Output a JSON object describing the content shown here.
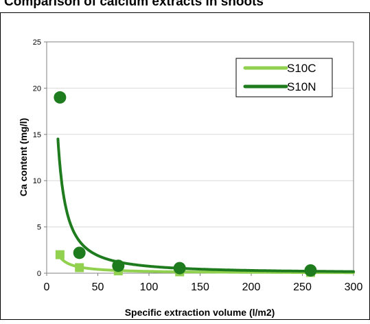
{
  "chart_data": {
    "type": "scatter",
    "title": "Comparison of calcium extracts in shoots",
    "xlabel": "Specific extraction volume (l/m2)",
    "ylabel": "Ca content (mg/l)",
    "xlim": [
      0,
      300
    ],
    "ylim": [
      0,
      25
    ],
    "xticks": [
      0,
      50,
      100,
      150,
      200,
      250,
      300
    ],
    "yticks": [
      0,
      5,
      10,
      15,
      20,
      25
    ],
    "grid": true,
    "legend_position": "top-right",
    "series": [
      {
        "name": "S10C",
        "marker": "square",
        "color": "#92d050",
        "x": [
          13,
          32,
          70,
          130,
          258
        ],
        "y": [
          2.0,
          0.6,
          0.25,
          0.15,
          0.08
        ]
      },
      {
        "name": "S10N",
        "marker": "circle",
        "color": "#1e7b1e",
        "x": [
          13,
          32,
          70,
          130,
          258
        ],
        "y": [
          19.0,
          2.2,
          0.8,
          0.55,
          0.3
        ]
      }
    ]
  }
}
